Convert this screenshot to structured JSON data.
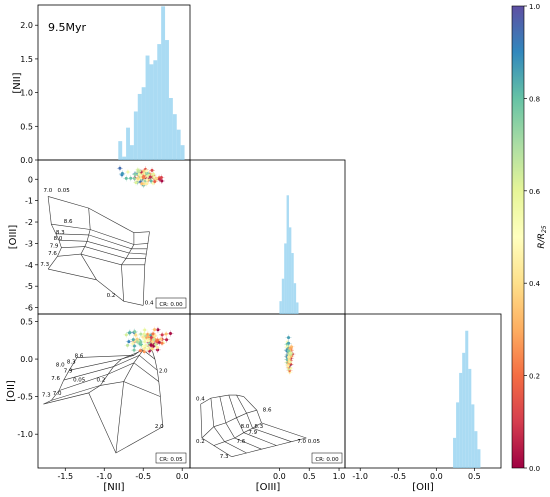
{
  "chart_data": {
    "type": "corner",
    "annotation": "9.5Myr",
    "colorbar": {
      "label": "R/R25",
      "range": [
        0.0,
        1.0
      ],
      "ticks": [
        "0.0",
        "0.2",
        "0.4",
        "0.6",
        "0.8",
        "1.0"
      ],
      "colormap": "Spectral"
    },
    "panels": [
      {
        "id": "nii-hist",
        "type": "histogram",
        "ylabel": "[NII]",
        "xlim": [
          -1.85,
          0.1
        ],
        "ylim": [
          0,
          2.3
        ],
        "ytick_labels": [
          "0.0",
          "0.5",
          "1.0",
          "1.5",
          "2.0"
        ],
        "bins": [
          [
            -0.82,
            0.28
          ],
          [
            -0.77,
            0.05
          ],
          [
            -0.72,
            0.48
          ],
          [
            -0.67,
            0.22
          ],
          [
            -0.62,
            0.72
          ],
          [
            -0.57,
            0.98
          ],
          [
            -0.52,
            1.08
          ],
          [
            -0.47,
            1.55
          ],
          [
            -0.42,
            1.42
          ],
          [
            -0.37,
            1.48
          ],
          [
            -0.32,
            1.72
          ],
          [
            -0.27,
            2.28
          ],
          [
            -0.22,
            1.78
          ],
          [
            -0.17,
            0.92
          ],
          [
            -0.12,
            0.68
          ],
          [
            -0.07,
            0.45
          ],
          [
            -0.02,
            0.22
          ]
        ]
      },
      {
        "id": "oiii-vs-nii",
        "type": "scatter",
        "ylabel": "[OIII]",
        "xlim": [
          -1.85,
          0.1
        ],
        "ylim": [
          -6.3,
          0.9
        ],
        "ytick_labels": [
          "-6",
          "-5",
          "-4",
          "-3",
          "-2",
          "-1",
          "0"
        ],
        "cr_label": "CR: 0.00",
        "grid_labels": [
          "7.0",
          "0.05",
          "8.6",
          "8.3",
          "8.0",
          "7.9",
          "7.6",
          "7.3",
          "0.2",
          "0.4"
        ]
      },
      {
        "id": "oiii-hist",
        "type": "histogram",
        "xlim": [
          -1.5,
          1.1
        ],
        "ylim": [
          0,
          2.4
        ],
        "bins": [
          [
            0.0,
            0.2
          ],
          [
            0.04,
            0.55
          ],
          [
            0.08,
            1.1
          ],
          [
            0.12,
            1.85
          ],
          [
            0.16,
            1.35
          ],
          [
            0.2,
            0.95
          ],
          [
            0.24,
            0.48
          ],
          [
            0.28,
            0.18
          ]
        ]
      },
      {
        "id": "oii-vs-nii",
        "type": "scatter",
        "ylabel": "[OII]",
        "xlabel": "[NII]",
        "xlim": [
          -1.85,
          0.1
        ],
        "ylim": [
          -1.45,
          0.6
        ],
        "xtick_labels": [
          "-1.5",
          "-1.0",
          "-0.5",
          "0.0"
        ],
        "ytick_labels": [
          "-1.0",
          "-0.5",
          "0.0",
          "0.5"
        ],
        "cr_label": "CR: 0.05",
        "grid_labels": [
          "8.6",
          "8.3",
          "8.0",
          "7.9",
          "7.6",
          "7.3",
          "0.05",
          "0.2",
          "7.0",
          "2.0",
          "2.0"
        ]
      },
      {
        "id": "oii-vs-oiii",
        "type": "scatter",
        "xlabel": "[OIII]",
        "xlim": [
          -1.5,
          1.1
        ],
        "ylim": [
          -1.45,
          0.6
        ],
        "xtick_labels": [
          "0.0",
          "0.5",
          "1.0"
        ],
        "cr_label": "CR: 0.00",
        "grid_labels": [
          "0.4",
          "0.2",
          "7.3",
          "7.6",
          "7.9",
          "8.0",
          "8.3",
          "8.6",
          "7.0 0.05"
        ]
      },
      {
        "id": "oii-hist",
        "type": "histogram",
        "xlabel": "[OII]",
        "xlim": [
          -1.2,
          0.85
        ],
        "ylim": [
          0,
          2.3
        ],
        "xtick_labels": [
          "-1.0",
          "-0.5",
          "0.0",
          "0.5"
        ],
        "bins": [
          [
            0.22,
            0.45
          ],
          [
            0.26,
            0.98
          ],
          [
            0.3,
            1.42
          ],
          [
            0.34,
            1.72
          ],
          [
            0.38,
            2.05
          ],
          [
            0.42,
            1.48
          ],
          [
            0.46,
            0.95
          ],
          [
            0.5,
            0.55
          ],
          [
            0.54,
            0.28
          ]
        ]
      }
    ]
  }
}
